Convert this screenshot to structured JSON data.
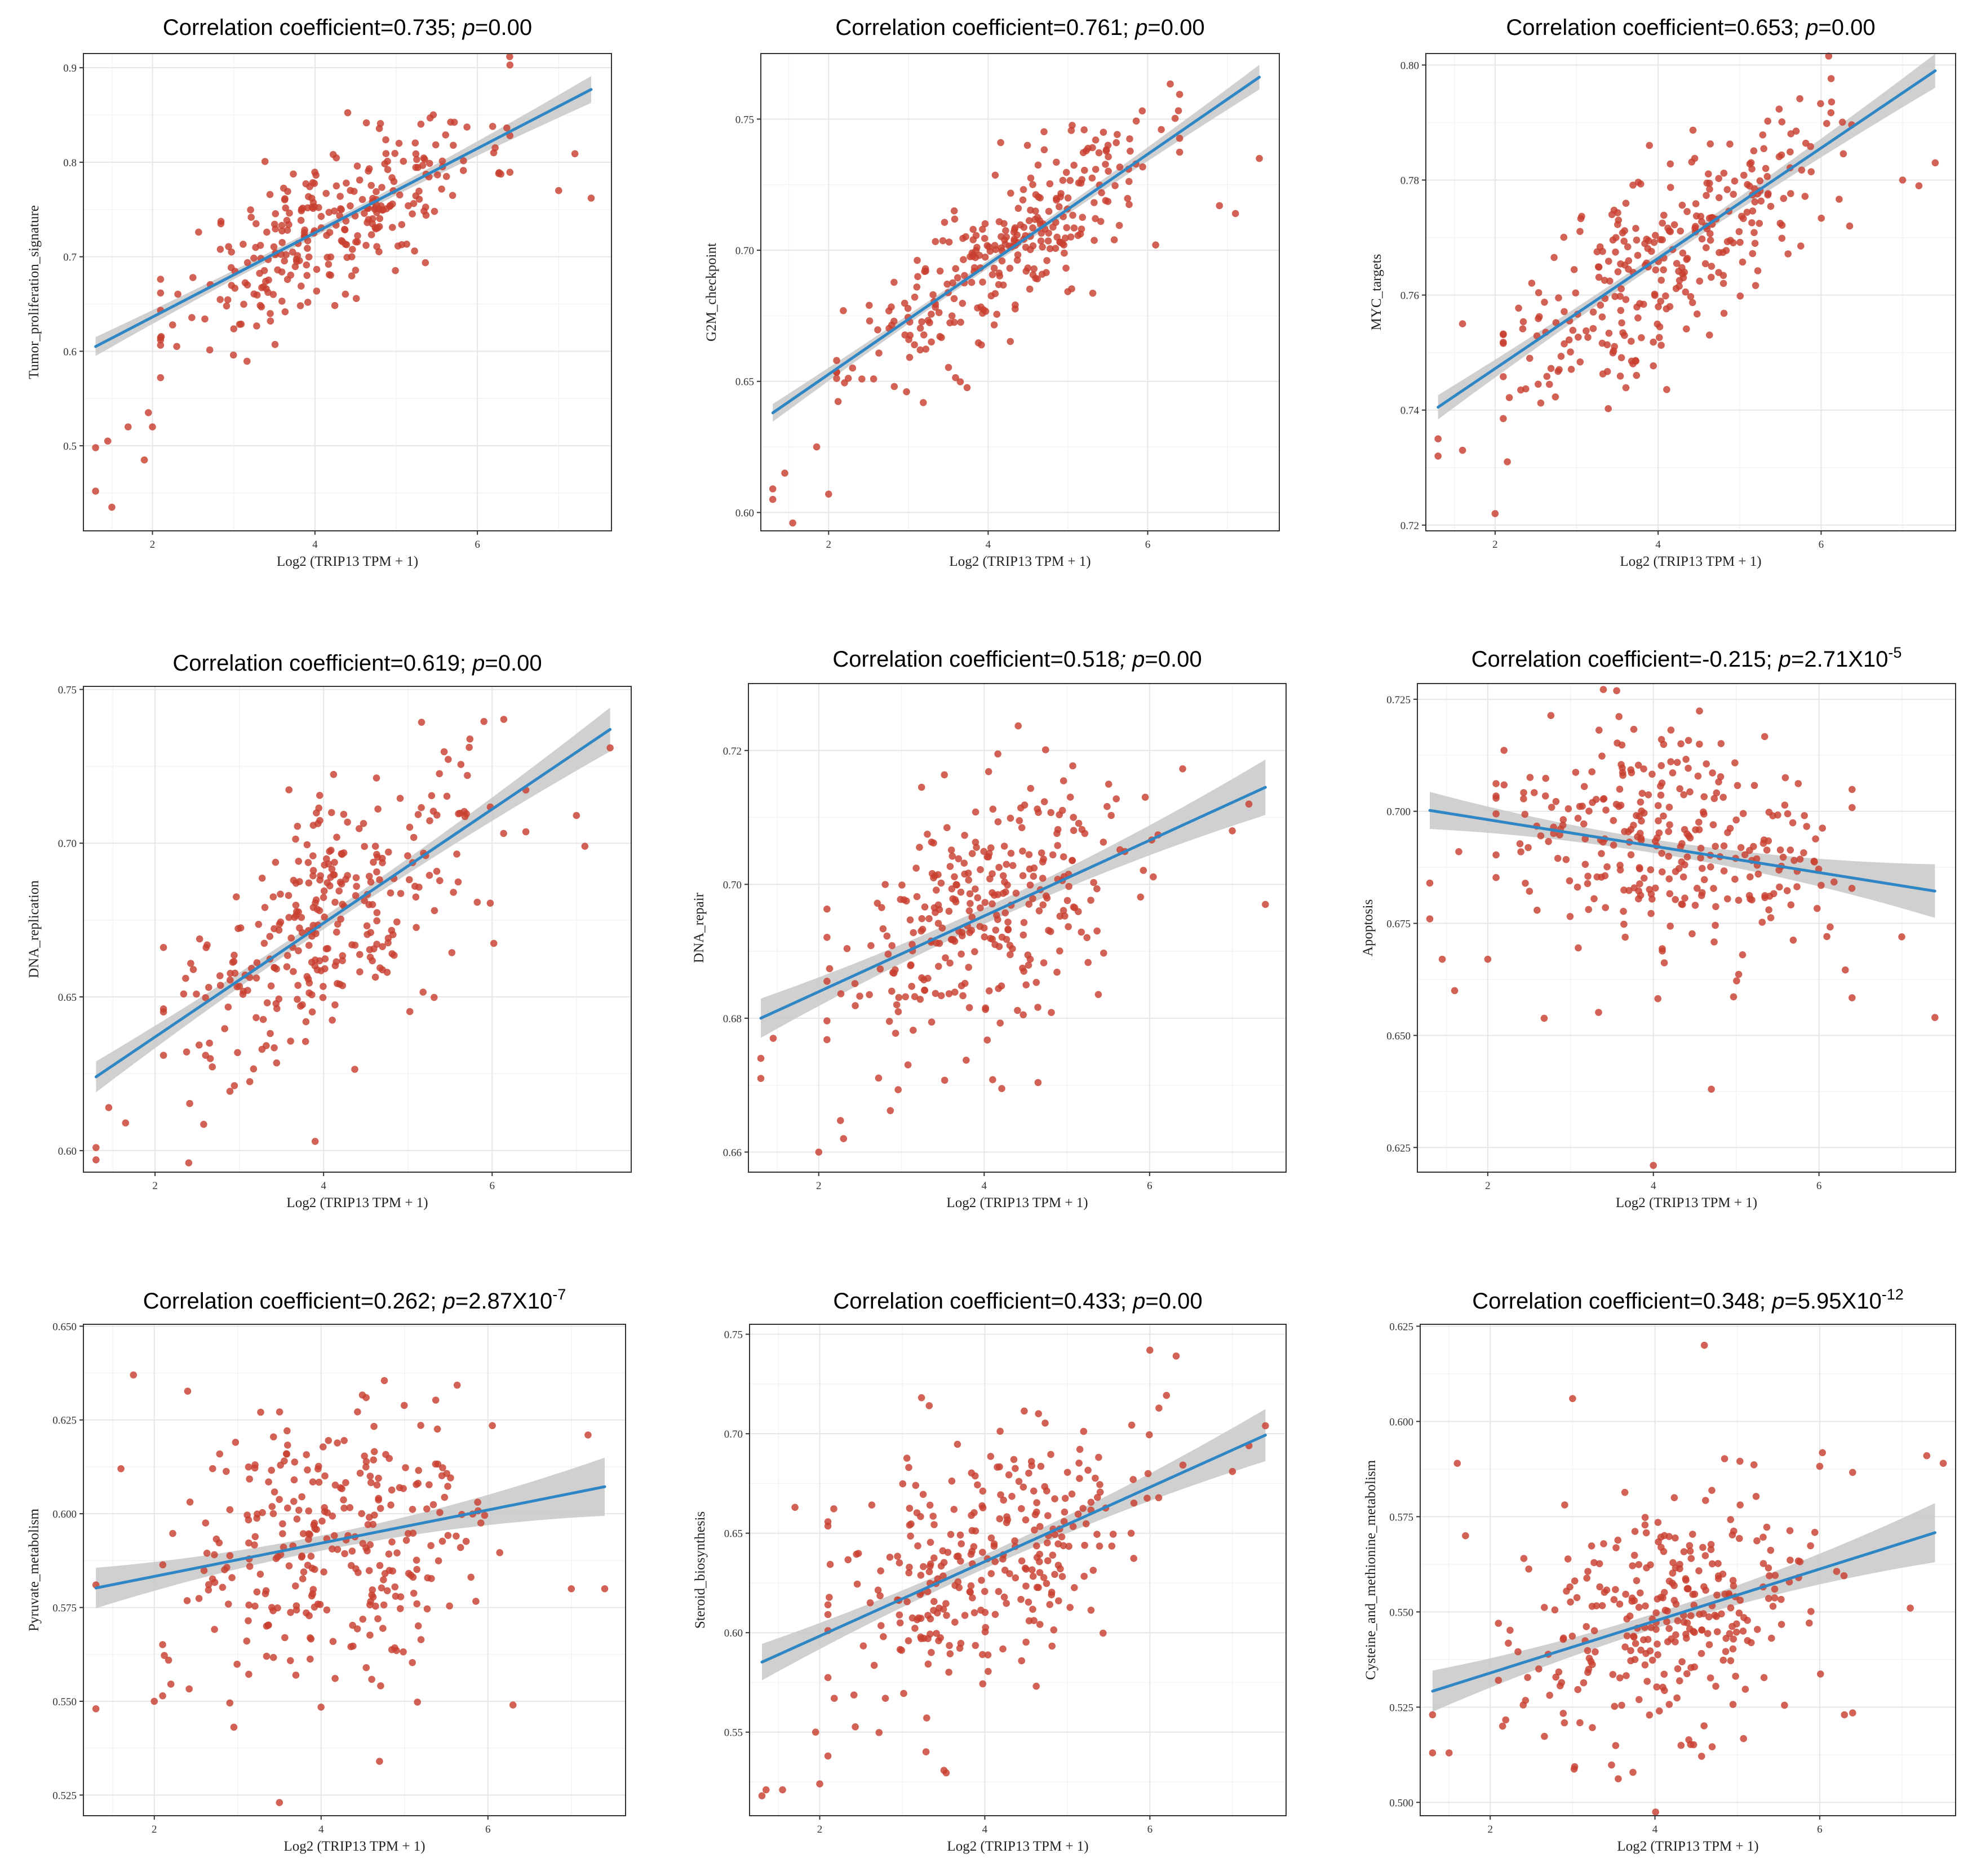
{
  "figure": {
    "description_label": "TRIP13 correlation scatter plots"
  },
  "colors": {
    "point": "#c8402f",
    "line": "#2f86c4",
    "band": "#c8c8c8",
    "frame": "#333333"
  },
  "chart_data": [
    {
      "type": "scatter",
      "title_prefix": "Correlation coefficient=0.735; ",
      "title_p": "p",
      "title_eq": "=0.00",
      "title_exp": "",
      "xlabel": "Log2 (TRIP13 TPM + 1)",
      "ylabel": "Tumor_proliferation_signature",
      "xlim": [
        1.15,
        7.65
      ],
      "ylim": [
        0.41,
        0.915
      ],
      "xticks": [
        2,
        4,
        6
      ],
      "yticks": [
        0.5,
        0.6,
        0.7,
        0.8,
        0.9
      ],
      "xtick_labels": [
        "2",
        "4",
        "6"
      ],
      "ytick_labels": [
        "0.5",
        "0.6",
        "0.7",
        "0.8",
        "0.9"
      ],
      "fit": {
        "x": [
          1.3,
          7.4
        ],
        "y": [
          0.605,
          0.877
        ]
      },
      "band_end": 0.012,
      "band_mid": 0.004,
      "points": {
        "seed": 11,
        "n": 290,
        "mean": 4.2,
        "sd": 0.95,
        "noise": 0.04
      },
      "extra_points": [
        [
          1.3,
          0.498
        ],
        [
          1.3,
          0.452
        ],
        [
          1.5,
          0.435
        ],
        [
          1.9,
          0.485
        ],
        [
          2.0,
          0.52
        ],
        [
          1.45,
          0.505
        ],
        [
          1.7,
          0.52
        ],
        [
          1.95,
          0.535
        ],
        [
          7.2,
          0.809
        ],
        [
          7.4,
          0.762
        ],
        [
          7.0,
          0.77
        ],
        [
          6.2,
          0.81
        ]
      ]
    },
    {
      "type": "scatter",
      "title_prefix": "Correlation coefficient=0.761; ",
      "title_p": "p",
      "title_eq": "=0.00",
      "title_exp": "",
      "xlabel": "Log2 (TRIP13 TPM + 1)",
      "ylabel": "G2M_checkpoint",
      "xlim": [
        1.15,
        7.65
      ],
      "ylim": [
        0.593,
        0.775
      ],
      "xticks": [
        2,
        4,
        6
      ],
      "yticks": [
        0.6,
        0.65,
        0.7,
        0.75
      ],
      "xtick_labels": [
        "2",
        "4",
        "6"
      ],
      "ytick_labels": [
        "0.60",
        "0.65",
        "0.70",
        "0.75"
      ],
      "fit": {
        "x": [
          1.3,
          7.4
        ],
        "y": [
          0.638,
          0.766
        ]
      },
      "band_end": 0.004,
      "band_mid": 0.0015,
      "points": {
        "seed": 23,
        "n": 290,
        "mean": 4.2,
        "sd": 0.95,
        "noise": 0.014
      },
      "extra_points": [
        [
          1.3,
          0.605
        ],
        [
          1.3,
          0.609
        ],
        [
          1.55,
          0.596
        ],
        [
          1.45,
          0.615
        ],
        [
          1.85,
          0.625
        ],
        [
          2.0,
          0.607
        ],
        [
          7.4,
          0.735
        ],
        [
          7.1,
          0.714
        ],
        [
          6.9,
          0.717
        ],
        [
          6.1,
          0.702
        ]
      ]
    },
    {
      "type": "scatter",
      "title_prefix": "Correlation coefficient=0.653; ",
      "title_p": "p",
      "title_eq": "=0.00",
      "title_exp": "",
      "xlabel": "Log2 (TRIP13 TPM + 1)",
      "ylabel": "MYC_targets",
      "xlim": [
        1.15,
        7.65
      ],
      "ylim": [
        0.719,
        0.802
      ],
      "xticks": [
        2,
        4,
        6
      ],
      "yticks": [
        0.72,
        0.74,
        0.76,
        0.78,
        0.8
      ],
      "xtick_labels": [
        "2",
        "4",
        "6"
      ],
      "ytick_labels": [
        "0.72",
        "0.74",
        "0.76",
        "0.78",
        "0.80"
      ],
      "fit": {
        "x": [
          1.3,
          7.4
        ],
        "y": [
          0.7405,
          0.799
        ]
      },
      "band_end": 0.0025,
      "band_mid": 0.0009,
      "points": {
        "seed": 37,
        "n": 300,
        "mean": 4.1,
        "sd": 0.95,
        "noise": 0.0085
      },
      "extra_points": [
        [
          1.3,
          0.732
        ],
        [
          1.3,
          0.735
        ],
        [
          1.6,
          0.755
        ],
        [
          1.6,
          0.733
        ],
        [
          2.0,
          0.722
        ],
        [
          2.15,
          0.731
        ],
        [
          7.4,
          0.783
        ],
        [
          7.2,
          0.779
        ],
        [
          7.0,
          0.78
        ],
        [
          6.35,
          0.772
        ]
      ]
    },
    {
      "type": "scatter",
      "title_prefix": "Correlation coefficient=0.619; ",
      "title_p": "p",
      "title_eq": "=0.00",
      "title_exp": "",
      "xlabel": "Log2 (TRIP13 TPM + 1)",
      "ylabel": "DNA_replication",
      "xlim": [
        1.15,
        7.65
      ],
      "ylim": [
        0.593,
        0.751
      ],
      "xticks": [
        2,
        4,
        6
      ],
      "yticks": [
        0.6,
        0.65,
        0.7,
        0.75
      ],
      "xtick_labels": [
        "2",
        "4",
        "6"
      ],
      "ytick_labels": [
        "0.60",
        "0.65",
        "0.70",
        "0.75"
      ],
      "fit": {
        "x": [
          1.3,
          7.4
        ],
        "y": [
          0.624,
          0.737
        ]
      },
      "band_end": 0.006,
      "band_mid": 0.002,
      "points": {
        "seed": 41,
        "n": 300,
        "mean": 4.1,
        "sd": 0.95,
        "noise": 0.019
      },
      "extra_points": [
        [
          1.3,
          0.597
        ],
        [
          1.3,
          0.601
        ],
        [
          1.45,
          0.614
        ],
        [
          1.65,
          0.609
        ],
        [
          2.4,
          0.596
        ],
        [
          3.9,
          0.603
        ],
        [
          7.4,
          0.731
        ],
        [
          7.1,
          0.699
        ],
        [
          7.0,
          0.709
        ]
      ]
    },
    {
      "type": "scatter",
      "title_prefix": "Correlation coefficient=0.518",
      "title_p": "; p",
      "title_eq": "=0.00",
      "title_exp": "",
      "xlabel": "Log2 (TRIP13 TPM + 1)",
      "ylabel": "DNA_repair",
      "xlim": [
        1.15,
        7.65
      ],
      "ylim": [
        0.657,
        0.73
      ],
      "xticks": [
        2,
        4,
        6
      ],
      "yticks": [
        0.66,
        0.68,
        0.7,
        0.72
      ],
      "xtick_labels": [
        "2",
        "4",
        "6"
      ],
      "ytick_labels": [
        "0.66",
        "0.68",
        "0.70",
        "0.72"
      ],
      "fit": {
        "x": [
          1.3,
          7.4
        ],
        "y": [
          0.68,
          0.7145
        ]
      },
      "band_end": 0.0035,
      "band_mid": 0.0012,
      "points": {
        "seed": 53,
        "n": 300,
        "mean": 4.1,
        "sd": 0.95,
        "noise": 0.0095
      },
      "extra_points": [
        [
          1.3,
          0.671
        ],
        [
          1.3,
          0.674
        ],
        [
          1.45,
          0.677
        ],
        [
          2.0,
          0.66
        ],
        [
          2.3,
          0.662
        ],
        [
          7.4,
          0.697
        ],
        [
          7.2,
          0.712
        ],
        [
          7.0,
          0.708
        ]
      ]
    },
    {
      "type": "scatter",
      "title_prefix": "Correlation coefficient=-0.215; ",
      "title_p": "p",
      "title_eq": "=2.71X10",
      "title_exp": "-5",
      "xlabel": "Log2 (TRIP13 TPM + 1)",
      "ylabel": "Apoptosis",
      "xlim": [
        1.15,
        7.65
      ],
      "ylim": [
        0.6195,
        0.7285
      ],
      "xticks": [
        2,
        4,
        6
      ],
      "yticks": [
        0.625,
        0.65,
        0.675,
        0.7,
        0.725
      ],
      "xtick_labels": [
        "2",
        "4",
        "6"
      ],
      "ytick_labels": [
        "0.625",
        "0.650",
        "0.675",
        "0.700",
        "0.725"
      ],
      "fit": {
        "x": [
          1.3,
          7.4
        ],
        "y": [
          0.7002,
          0.6822
        ]
      },
      "band_end": 0.005,
      "band_mid": 0.0015,
      "points": {
        "seed": 67,
        "n": 300,
        "mean": 4.1,
        "sd": 0.95,
        "noise": 0.0125
      },
      "extra_points": [
        [
          1.3,
          0.684
        ],
        [
          1.3,
          0.676
        ],
        [
          1.45,
          0.667
        ],
        [
          1.6,
          0.66
        ],
        [
          1.65,
          0.691
        ],
        [
          2.0,
          0.667
        ],
        [
          4.0,
          0.621
        ],
        [
          4.7,
          0.638
        ],
        [
          7.4,
          0.654
        ],
        [
          7.0,
          0.672
        ]
      ]
    },
    {
      "type": "scatter",
      "title_prefix": "Correlation coefficient=0.262; ",
      "title_p": "p",
      "title_eq": "=2.87X10",
      "title_exp": "-7",
      "xlabel": "Log2 (TRIP13 TPM + 1)",
      "ylabel": "Pyruvate_metabolism",
      "xlim": [
        1.15,
        7.65
      ],
      "ylim": [
        0.5195,
        0.6505
      ],
      "xticks": [
        2,
        4,
        6
      ],
      "yticks": [
        0.525,
        0.55,
        0.575,
        0.6,
        0.625,
        0.65
      ],
      "xtick_labels": [
        "2",
        "4",
        "6"
      ],
      "ytick_labels": [
        "0.525",
        "0.550",
        "0.575",
        "0.600",
        "0.625",
        "0.650"
      ],
      "fit": {
        "x": [
          1.3,
          7.4
        ],
        "y": [
          0.5802,
          0.6072
        ]
      },
      "band_end": 0.0065,
      "band_mid": 0.002,
      "points": {
        "seed": 79,
        "n": 300,
        "mean": 4.1,
        "sd": 0.95,
        "noise": 0.018
      },
      "extra_points": [
        [
          1.3,
          0.548
        ],
        [
          1.3,
          0.581
        ],
        [
          1.6,
          0.612
        ],
        [
          1.75,
          0.637
        ],
        [
          2.0,
          0.55
        ],
        [
          3.5,
          0.523
        ],
        [
          4.7,
          0.534
        ],
        [
          7.4,
          0.58
        ],
        [
          7.2,
          0.621
        ],
        [
          7.0,
          0.58
        ],
        [
          6.3,
          0.549
        ]
      ]
    },
    {
      "type": "scatter",
      "title_prefix": "Correlation coefficient=0.433; ",
      "title_p": "p",
      "title_eq": "=0.00",
      "title_exp": "",
      "xlabel": "Log2 (TRIP13 TPM + 1)",
      "ylabel": "Steroid_biosynthesis",
      "xlim": [
        1.15,
        7.65
      ],
      "ylim": [
        0.508,
        0.755
      ],
      "xticks": [
        2,
        4,
        6
      ],
      "yticks": [
        0.55,
        0.6,
        0.65,
        0.7,
        0.75
      ],
      "xtick_labels": [
        "2",
        "4",
        "6"
      ],
      "ytick_labels": [
        "0.55",
        "0.60",
        "0.65",
        "0.70",
        "0.75"
      ],
      "fit": {
        "x": [
          1.3,
          7.4
        ],
        "y": [
          0.5852,
          0.6993
        ]
      },
      "band_end": 0.011,
      "band_mid": 0.0035,
      "points": {
        "seed": 89,
        "n": 300,
        "mean": 4.1,
        "sd": 0.95,
        "noise": 0.032
      },
      "extra_points": [
        [
          1.3,
          0.518
        ],
        [
          1.35,
          0.521
        ],
        [
          1.55,
          0.521
        ],
        [
          1.7,
          0.663
        ],
        [
          1.95,
          0.55
        ],
        [
          2.0,
          0.524
        ],
        [
          2.1,
          0.538
        ],
        [
          7.4,
          0.704
        ],
        [
          7.2,
          0.694
        ],
        [
          7.0,
          0.681
        ],
        [
          6.0,
          0.742
        ]
      ]
    },
    {
      "type": "scatter",
      "title_prefix": "Correlation coefficient=0.348; ",
      "title_p": "p",
      "title_eq": "=5.95X10",
      "title_exp": "-12",
      "xlabel": "Log2 (TRIP13 TPM + 1)",
      "ylabel": "Cysteine_and_methionine_metabolism",
      "xlim": [
        1.15,
        7.65
      ],
      "ylim": [
        0.4965,
        0.6255
      ],
      "xticks": [
        2,
        4,
        6
      ],
      "yticks": [
        0.5,
        0.525,
        0.55,
        0.575,
        0.6,
        0.625
      ],
      "xtick_labels": [
        "2",
        "4",
        "6"
      ],
      "ytick_labels": [
        "0.500",
        "0.525",
        "0.550",
        "0.575",
        "0.600",
        "0.625"
      ],
      "fit": {
        "x": [
          1.3,
          7.4
        ],
        "y": [
          0.5292,
          0.5708
        ]
      },
      "band_end": 0.0065,
      "band_mid": 0.002,
      "points": {
        "seed": 97,
        "n": 300,
        "mean": 4.1,
        "sd": 0.95,
        "noise": 0.017
      },
      "extra_points": [
        [
          1.3,
          0.523
        ],
        [
          1.3,
          0.513
        ],
        [
          1.5,
          0.513
        ],
        [
          1.6,
          0.589
        ],
        [
          1.7,
          0.57
        ],
        [
          2.15,
          0.52
        ],
        [
          3.0,
          0.606
        ],
        [
          4.6,
          0.62
        ],
        [
          7.5,
          0.589
        ],
        [
          7.3,
          0.591
        ],
        [
          7.1,
          0.551
        ],
        [
          6.3,
          0.523
        ]
      ]
    }
  ]
}
